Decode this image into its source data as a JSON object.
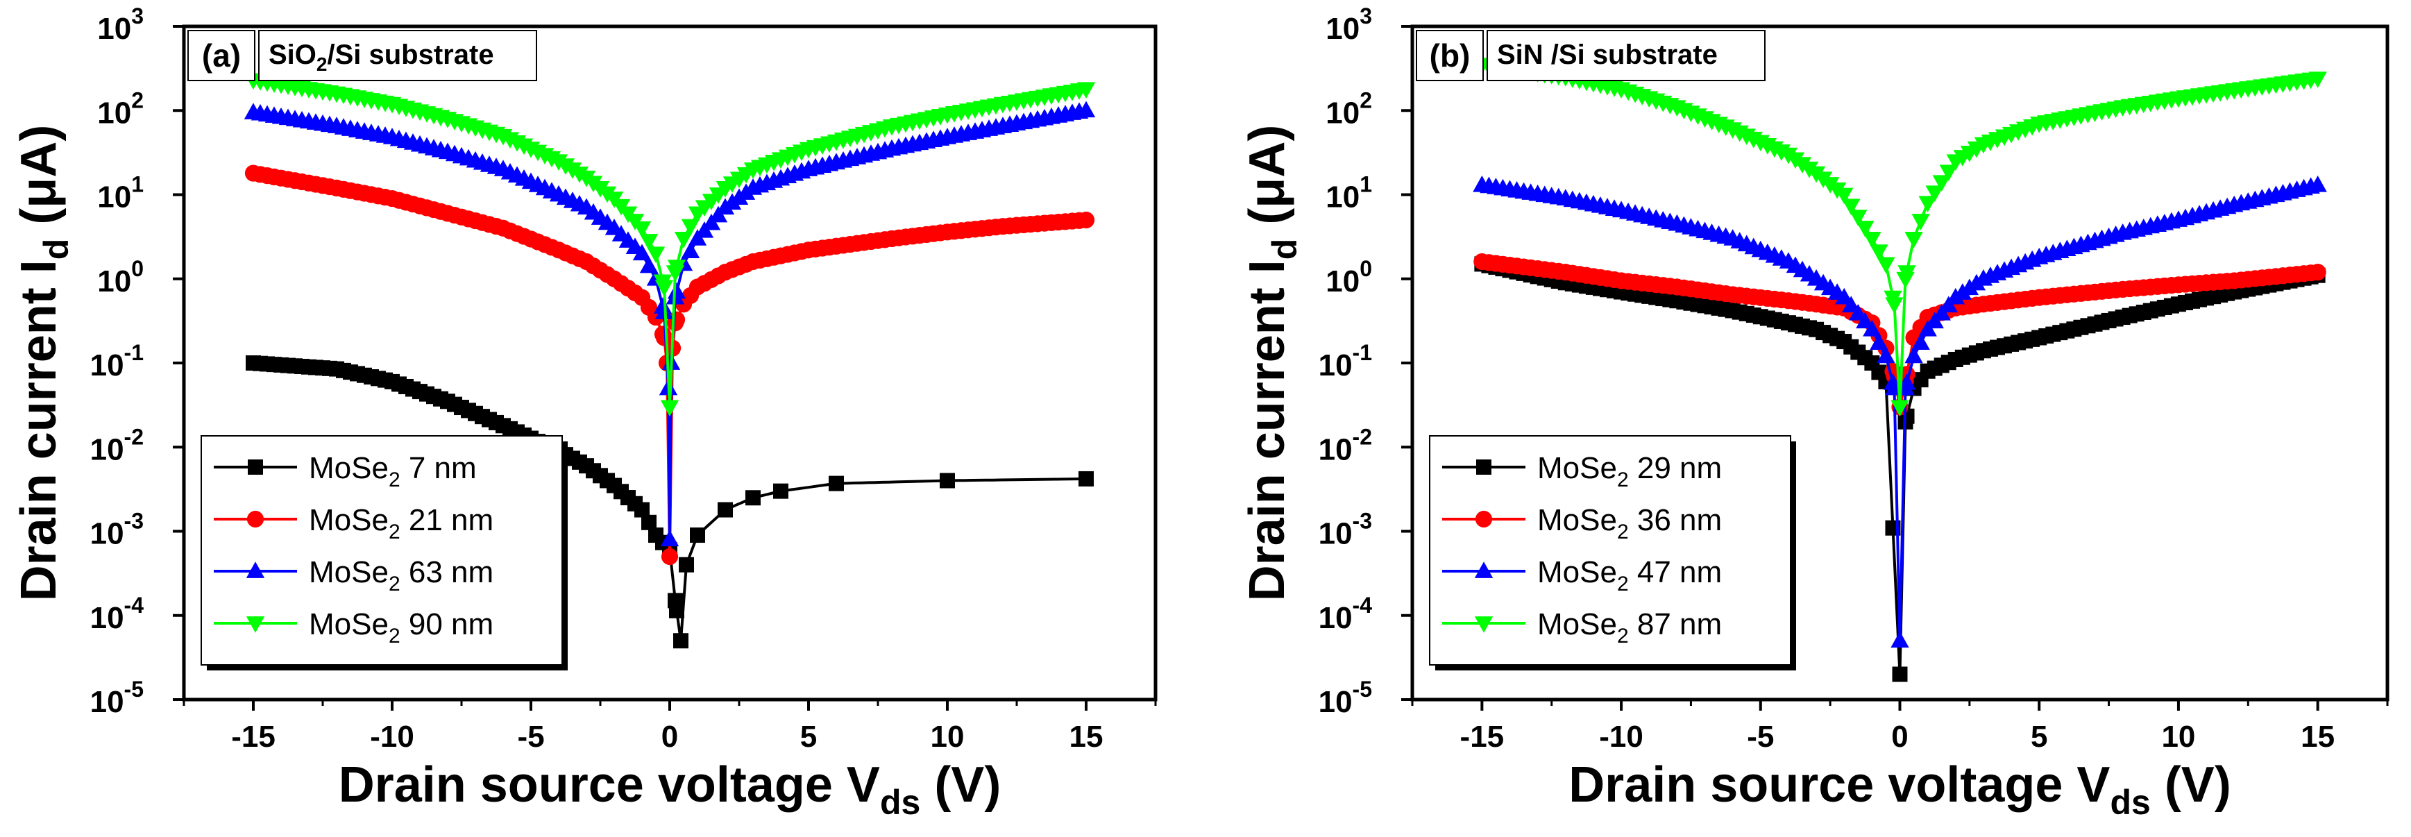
{
  "chart_data": [
    {
      "type": "line",
      "panel_label": "(a)",
      "substrate_label": "SiO2/Si substrate",
      "xlabel": "Drain source voltage V_ds (V)",
      "ylabel": "Drain current I_d (μA)",
      "xlim": [
        -17.5,
        17.5
      ],
      "ylim": [
        1e-05,
        1000
      ],
      "yscale": "log",
      "x_ticks": [
        -15,
        -10,
        -5,
        0,
        5,
        10,
        15
      ],
      "x_tick_labels": [
        "-15",
        "-10",
        "-5",
        "0",
        "5",
        "10",
        "15"
      ],
      "y_tick_labels": [
        {
          "base": "10",
          "exp": "-5"
        },
        {
          "base": "10",
          "exp": "-4"
        },
        {
          "base": "10",
          "exp": "-3"
        },
        {
          "base": "10",
          "exp": "-2"
        },
        {
          "base": "10",
          "exp": "-1"
        },
        {
          "base": "10",
          "exp": "0"
        },
        {
          "base": "10",
          "exp": "1"
        },
        {
          "base": "10",
          "exp": "2"
        },
        {
          "base": "10",
          "exp": "3"
        }
      ],
      "legend_position": "bottom-left",
      "series": [
        {
          "name": "MoSe2 7 nm",
          "label_prefix": "MoSe",
          "label_sub": "2",
          "label_suffix": " 7 nm",
          "color": "#000000",
          "marker": "square",
          "neg": [
            [
              -15,
              0.1
            ],
            [
              -12,
              0.085
            ],
            [
              -10,
              0.06
            ],
            [
              -8,
              0.035
            ],
            [
              -6,
              0.018
            ],
            [
              -4,
              0.009
            ],
            [
              -3,
              0.006
            ],
            [
              -2,
              0.0035
            ],
            [
              -1,
              0.0018
            ],
            [
              -0.5,
              0.0009
            ],
            [
              0,
              0.0006
            ],
            [
              0.2,
              0.00015
            ],
            [
              0.4,
              5e-05
            ]
          ],
          "pos": [
            [
              0.4,
              5e-05
            ],
            [
              0.6,
              0.0004
            ],
            [
              1,
              0.0009
            ],
            [
              2,
              0.0018
            ],
            [
              3,
              0.0025
            ],
            [
              4,
              0.003
            ],
            [
              6,
              0.0037
            ],
            [
              10,
              0.004
            ],
            [
              15,
              0.0042
            ]
          ]
        },
        {
          "name": "MoSe2 21 nm",
          "label_prefix": "MoSe",
          "label_sub": "2",
          "label_suffix": " 21 nm",
          "color": "#ff0000",
          "marker": "circle",
          "neg": [
            [
              -15,
              18
            ],
            [
              -12,
              12
            ],
            [
              -10,
              9
            ],
            [
              -8,
              6
            ],
            [
              -6,
              4
            ],
            [
              -4,
              2.2
            ],
            [
              -3,
              1.6
            ],
            [
              -2,
              1.0
            ],
            [
              -1,
              0.6
            ],
            [
              -0.5,
              0.35
            ],
            [
              -0.2,
              0.2
            ],
            [
              -0.1,
              0.1
            ],
            [
              0,
              0.0005
            ]
          ],
          "pos": [
            [
              0,
              0.0005
            ],
            [
              0.1,
              0.15
            ],
            [
              0.2,
              0.3
            ],
            [
              0.5,
              0.5
            ],
            [
              1,
              0.8
            ],
            [
              2,
              1.2
            ],
            [
              3,
              1.6
            ],
            [
              5,
              2.2
            ],
            [
              8,
              3.0
            ],
            [
              10,
              3.6
            ],
            [
              12,
              4.2
            ],
            [
              15,
              5.0
            ]
          ]
        },
        {
          "name": "MoSe2 63 nm",
          "label_prefix": "MoSe",
          "label_sub": "2",
          "label_suffix": " 63 nm",
          "color": "#0000ff",
          "marker": "triangle-up",
          "neg": [
            [
              -15,
              95
            ],
            [
              -12,
              65
            ],
            [
              -10,
              48
            ],
            [
              -8,
              32
            ],
            [
              -6,
              20
            ],
            [
              -4,
              10
            ],
            [
              -3,
              7
            ],
            [
              -2,
              4
            ],
            [
              -1,
              2
            ],
            [
              -0.5,
              1.0
            ],
            [
              -0.2,
              0.4
            ],
            [
              -0.05,
              0.05
            ],
            [
              0,
              0.0008
            ]
          ],
          "pos": [
            [
              0,
              0.0008
            ],
            [
              0.05,
              0.1
            ],
            [
              0.2,
              0.6
            ],
            [
              0.5,
              1.5
            ],
            [
              1,
              3
            ],
            [
              2,
              7
            ],
            [
              3,
              12
            ],
            [
              5,
              20
            ],
            [
              8,
              35
            ],
            [
              10,
              48
            ],
            [
              12,
              65
            ],
            [
              15,
              100
            ]
          ]
        },
        {
          "name": "MoSe2 90 nm",
          "label_prefix": "MoSe",
          "label_sub": "2",
          "label_suffix": " 90 nm",
          "color": "#00ff00",
          "marker": "triangle-down",
          "neg": [
            [
              -15,
              230
            ],
            [
              -12,
              160
            ],
            [
              -10,
              120
            ],
            [
              -8,
              80
            ],
            [
              -6,
              50
            ],
            [
              -4,
              25
            ],
            [
              -3,
              16
            ],
            [
              -2,
              9
            ],
            [
              -1,
              4
            ],
            [
              -0.5,
              2
            ],
            [
              -0.2,
              0.8
            ],
            [
              0,
              0.03
            ]
          ],
          "pos": [
            [
              0,
              0.03
            ],
            [
              0.2,
              1.2
            ],
            [
              0.5,
              3
            ],
            [
              1,
              6
            ],
            [
              2,
              12
            ],
            [
              3,
              20
            ],
            [
              5,
              35
            ],
            [
              8,
              65
            ],
            [
              10,
              90
            ],
            [
              12,
              120
            ],
            [
              15,
              180
            ]
          ]
        }
      ]
    },
    {
      "type": "line",
      "panel_label": "(b)",
      "substrate_label": "SiN /Si substrate",
      "xlabel": "Drain source voltage V_ds (V)",
      "ylabel": "Drain current I_d (μA)",
      "xlim": [
        -17.5,
        17.5
      ],
      "ylim": [
        1e-05,
        1000
      ],
      "yscale": "log",
      "x_ticks": [
        -15,
        -10,
        -5,
        0,
        5,
        10,
        15
      ],
      "x_tick_labels": [
        "-15",
        "-10",
        "-5",
        "0",
        "5",
        "10",
        "15"
      ],
      "y_tick_labels": [
        {
          "base": "10",
          "exp": "-5"
        },
        {
          "base": "10",
          "exp": "-4"
        },
        {
          "base": "10",
          "exp": "-3"
        },
        {
          "base": "10",
          "exp": "-2"
        },
        {
          "base": "10",
          "exp": "-1"
        },
        {
          "base": "10",
          "exp": "0"
        },
        {
          "base": "10",
          "exp": "1"
        },
        {
          "base": "10",
          "exp": "2"
        },
        {
          "base": "10",
          "exp": "3"
        }
      ],
      "legend_position": "bottom-left",
      "series": [
        {
          "name": "MoSe2 29 nm",
          "label_prefix": "MoSe",
          "label_sub": "2",
          "label_suffix": " 29 nm",
          "color": "#000000",
          "marker": "square",
          "neg": [
            [
              -15,
              1.5
            ],
            [
              -12,
              0.9
            ],
            [
              -10,
              0.7
            ],
            [
              -8,
              0.55
            ],
            [
              -6,
              0.42
            ],
            [
              -4,
              0.3
            ],
            [
              -3,
              0.25
            ],
            [
              -2,
              0.18
            ],
            [
              -1,
              0.1
            ],
            [
              -0.5,
              0.06
            ],
            [
              0,
              2e-05
            ]
          ],
          "pos": [
            [
              0,
              2e-05
            ],
            [
              0.2,
              0.02
            ],
            [
              0.5,
              0.05
            ],
            [
              1,
              0.08
            ],
            [
              2,
              0.11
            ],
            [
              3,
              0.14
            ],
            [
              5,
              0.2
            ],
            [
              8,
              0.35
            ],
            [
              10,
              0.5
            ],
            [
              12,
              0.7
            ],
            [
              15,
              1.1
            ]
          ]
        },
        {
          "name": "MoSe2 36 nm",
          "label_prefix": "MoSe",
          "label_sub": "2",
          "label_suffix": " 36 nm",
          "color": "#ff0000",
          "marker": "circle",
          "neg": [
            [
              -15,
              1.6
            ],
            [
              -12,
              1.2
            ],
            [
              -10,
              0.95
            ],
            [
              -8,
              0.8
            ],
            [
              -6,
              0.65
            ],
            [
              -4,
              0.55
            ],
            [
              -3,
              0.5
            ],
            [
              -2,
              0.45
            ],
            [
              -1,
              0.3
            ],
            [
              -0.5,
              0.15
            ],
            [
              -0.2,
              0.07
            ],
            [
              0,
              0.03
            ]
          ],
          "pos": [
            [
              0,
              0.03
            ],
            [
              0.2,
              0.06
            ],
            [
              0.5,
              0.2
            ],
            [
              1,
              0.35
            ],
            [
              2,
              0.45
            ],
            [
              3,
              0.5
            ],
            [
              5,
              0.6
            ],
            [
              8,
              0.75
            ],
            [
              10,
              0.85
            ],
            [
              12,
              0.95
            ],
            [
              15,
              1.2
            ]
          ]
        },
        {
          "name": "MoSe2 47 nm",
          "label_prefix": "MoSe",
          "label_sub": "2",
          "label_suffix": " 47 nm",
          "color": "#0000ff",
          "marker": "triangle-up",
          "neg": [
            [
              -15,
              13
            ],
            [
              -12,
              9
            ],
            [
              -10,
              6.5
            ],
            [
              -8,
              4.5
            ],
            [
              -6,
              3
            ],
            [
              -4,
              1.6
            ],
            [
              -3,
              1.0
            ],
            [
              -2,
              0.6
            ],
            [
              -1,
              0.25
            ],
            [
              -0.5,
              0.12
            ],
            [
              -0.2,
              0.05
            ],
            [
              0,
              5e-05
            ]
          ],
          "pos": [
            [
              0,
              5e-05
            ],
            [
              0.2,
              0.05
            ],
            [
              0.5,
              0.12
            ],
            [
              1,
              0.25
            ],
            [
              2,
              0.6
            ],
            [
              3,
              1.0
            ],
            [
              5,
              1.8
            ],
            [
              8,
              3.5
            ],
            [
              10,
              5
            ],
            [
              12,
              7.5
            ],
            [
              15,
              13
            ]
          ]
        },
        {
          "name": "MoSe2 87 nm",
          "label_prefix": "MoSe",
          "label_sub": "2",
          "label_suffix": " 87 nm",
          "color": "#00ff00",
          "marker": "triangle-down",
          "neg": [
            [
              -15,
              350
            ],
            [
              -12,
              250
            ],
            [
              -10,
              180
            ],
            [
              -8,
              110
            ],
            [
              -6,
              60
            ],
            [
              -4,
              30
            ],
            [
              -3,
              18
            ],
            [
              -2,
              10
            ],
            [
              -1,
              3
            ],
            [
              -0.5,
              1.5
            ],
            [
              -0.2,
              0.5
            ],
            [
              0,
              0.03
            ]
          ],
          "pos": [
            [
              0,
              0.03
            ],
            [
              0.2,
              1
            ],
            [
              0.5,
              3
            ],
            [
              1,
              8
            ],
            [
              2,
              25
            ],
            [
              3,
              40
            ],
            [
              5,
              70
            ],
            [
              8,
              110
            ],
            [
              10,
              140
            ],
            [
              12,
              175
            ],
            [
              15,
              240
            ]
          ]
        }
      ]
    }
  ]
}
